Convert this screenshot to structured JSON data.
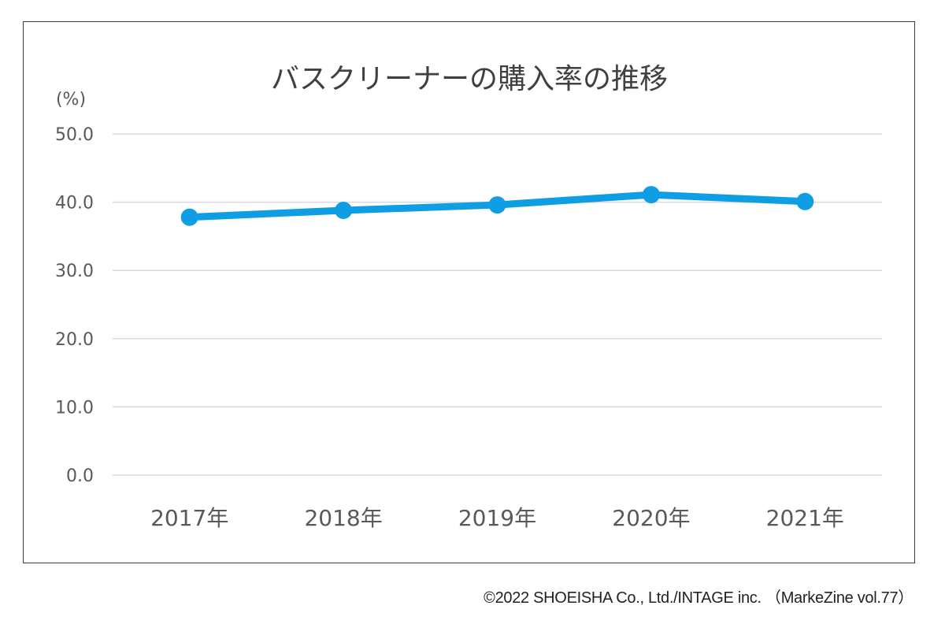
{
  "chart_data": {
    "type": "line",
    "title": "バスクリーナーの購入率の推移",
    "ylabel": "(%)",
    "xlabel": "",
    "categories": [
      "2017年",
      "2018年",
      "2019年",
      "2020年",
      "2021年"
    ],
    "series": [
      {
        "name": "購入率",
        "values": [
          37.8,
          38.8,
          39.6,
          41.1,
          40.1
        ],
        "color": "#0f9ee3"
      }
    ],
    "ylim": [
      0,
      50
    ],
    "yticks": [
      0,
      10,
      20,
      30,
      40,
      50
    ],
    "ytick_labels": [
      "0.0",
      "10.0",
      "20.0",
      "30.0",
      "40.0",
      "50.0"
    ],
    "grid": true,
    "legend": "none"
  },
  "credit": "©2022 SHOEISHA Co., Ltd./INTAGE inc. （MarkeZine vol.77）"
}
